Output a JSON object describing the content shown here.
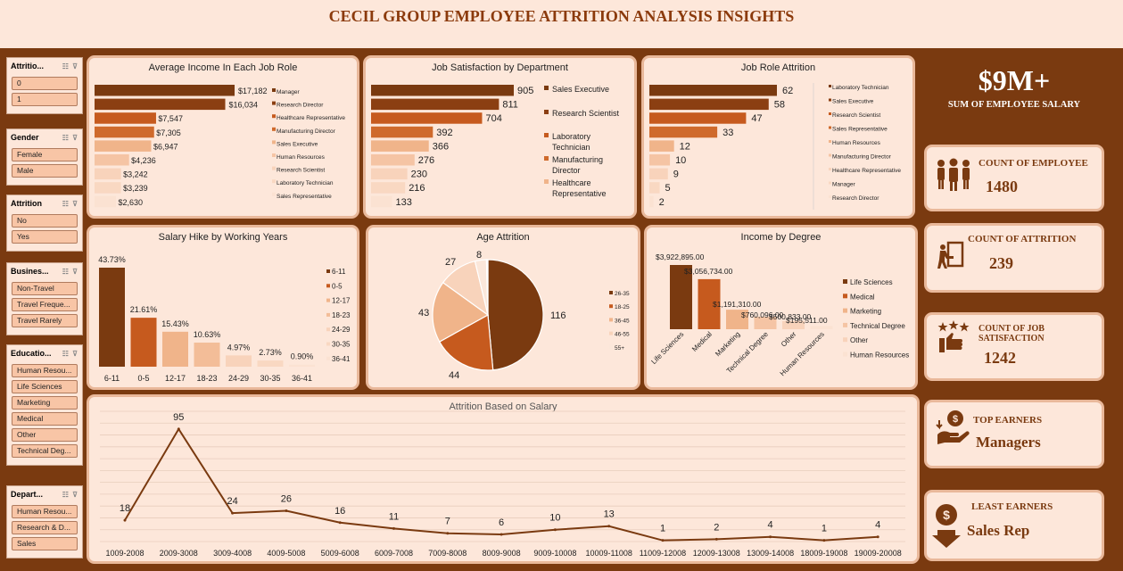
{
  "title": "CECIL GROUP EMPLOYEE ATTRITION ANALYSIS INSIGHTS",
  "slicers": [
    {
      "title": "Attritio...",
      "items": [
        "0",
        "1"
      ]
    },
    {
      "title": "Gender",
      "items": [
        "Female",
        "Male"
      ]
    },
    {
      "title": "Attrition",
      "items": [
        "No",
        "Yes"
      ]
    },
    {
      "title": "Busines...",
      "items": [
        "Non-Travel",
        "Travel Freque...",
        "Travel Rarely"
      ]
    },
    {
      "title": "Educatio...",
      "items": [
        "Human Resou...",
        "Life Sciences",
        "Marketing",
        "Medical",
        "Other",
        "Technical Deg..."
      ]
    },
    {
      "title": "Depart...",
      "items": [
        "Human Resou...",
        "Research & D...",
        "Sales"
      ]
    }
  ],
  "kpis": {
    "salary_value": "$9M+",
    "salary_label": "SUM OF EMPLOYEE SALARY",
    "employee_label": "COUNT OF EMPLOYEE",
    "employee_value": "1480",
    "attrition_label": "COUNT OF ATTRITION",
    "attrition_value": "239",
    "jobsat_label_1": "COUNT OF JOB",
    "jobsat_label_2": "SATISFACTION",
    "jobsat_value": "1242",
    "top_label": "TOP EARNERS",
    "top_value": "Managers",
    "least_label": "LEAST EARNERS",
    "least_value": "Sales Rep"
  },
  "chart_data": [
    {
      "id": "income-role",
      "type": "bar",
      "title": "Average Income In Each Job Role",
      "values": [
        17182,
        16034,
        7547,
        7305,
        6947,
        4236,
        3242,
        3239,
        2630
      ],
      "labels": [
        "$17,182",
        "$16,034",
        "$7,547",
        "$7,305",
        "$6,947",
        "$4,236",
        "$3,242",
        "$3,239",
        "$2,630"
      ],
      "legend": [
        "Manager",
        "Research Director",
        "Healthcare Representative",
        "Manufacturing Director",
        "Sales Executive",
        "Human Resources",
        "Research Scientist",
        "Laboratory Technician",
        "Sales Representative"
      ],
      "colors": [
        "#7a3a10",
        "#8b3f12",
        "#c65a1e",
        "#cf6a2c",
        "#f0b48a",
        "#f5c4a4",
        "#f8d3bb",
        "#f9d8c2",
        "#fbe2d2"
      ]
    },
    {
      "id": "job-sat",
      "type": "bar",
      "title": "Job Satisfaction by Department",
      "values": [
        905,
        811,
        704,
        392,
        366,
        276,
        230,
        216,
        133
      ],
      "legend": [
        "Sales Executive",
        "Research Scientist",
        "Laboratory Technician",
        "Manufacturing Director",
        "Healthcare Representative"
      ],
      "colors": [
        "#7a3a10",
        "#8b3f12",
        "#c65a1e",
        "#cf6a2c",
        "#f0b48a",
        "#f5c4a4",
        "#f8d3bb",
        "#f9d8c2",
        "#fbe2d2"
      ]
    },
    {
      "id": "role-attr",
      "type": "bar",
      "title": "Job Role Attrition",
      "values": [
        62,
        58,
        47,
        33,
        12,
        10,
        9,
        5,
        2
      ],
      "legend": [
        "Laboratory Technician",
        "Sales Executive",
        "Research Scientist",
        "Sales Representative",
        "Human Resources",
        "Manufacturing Director",
        "Healthcare Representative",
        "Manager",
        "Research Director"
      ],
      "colors": [
        "#7a3a10",
        "#8b3f12",
        "#c65a1e",
        "#cf6a2c",
        "#f0b48a",
        "#f5c4a4",
        "#f8d3bb",
        "#f9d8c2",
        "#fbe2d2"
      ]
    },
    {
      "id": "salary-hike",
      "type": "bar",
      "title": "Salary Hike by Working Years",
      "categories": [
        "6-11",
        "0-5",
        "12-17",
        "18-23",
        "24-29",
        "30-35",
        "36-41"
      ],
      "values": [
        43.73,
        21.61,
        15.43,
        10.63,
        4.97,
        2.73,
        0.9
      ],
      "labels": [
        "43.73%",
        "21.61%",
        "15.43%",
        "10.63%",
        "4.97%",
        "2.73%",
        "0.90%"
      ],
      "colors": [
        "#7a3a10",
        "#c65a1e",
        "#f0b48a",
        "#f3bd98",
        "#f8d3bb",
        "#f9d8c2",
        "#fbe2d2"
      ]
    },
    {
      "id": "age-attr",
      "type": "pie",
      "title": "Age Attrition",
      "values": [
        116,
        44,
        43,
        27,
        8,
        1
      ],
      "labels": [
        "116",
        "44",
        "43",
        "27",
        "8",
        ""
      ],
      "legend": [
        "26-35",
        "18-25",
        "36-45",
        "46-55",
        "55+"
      ],
      "colors": [
        "#7a3a10",
        "#c65a1e",
        "#f0b48a",
        "#f8d3bb",
        "#fbe7da",
        "#ffffff"
      ]
    },
    {
      "id": "income-degree",
      "type": "bar",
      "title": "Income by Degree",
      "categories": [
        "Life Sciences",
        "Medical",
        "Marketing",
        "Technical Degree",
        "Other",
        "Human Resources"
      ],
      "values": [
        3922895,
        3056734,
        1191310,
        760096,
        500833,
        195511
      ],
      "labels": [
        "$3,922,895.00",
        "$3,056,734.00",
        "$1,191,310.00",
        "$760,096.00",
        "$500,833.00",
        "$195,511.00"
      ],
      "legend": [
        "Life Sciences",
        "Medical",
        "Marketing",
        "Technical Degree",
        "Other",
        "Human Resources"
      ],
      "colors": [
        "#7a3a10",
        "#c65a1e",
        "#f0b48a",
        "#f5c4a4",
        "#f8d3bb",
        "#fbe2d2"
      ]
    },
    {
      "id": "attr-salary",
      "type": "line",
      "title": "Attrition Based on Salary",
      "categories": [
        "1009-2008",
        "2009-3008",
        "3009-4008",
        "4009-5008",
        "5009-6008",
        "6009-7008",
        "7009-8008",
        "8009-9008",
        "9009-10008",
        "10009-11008",
        "11009-12008",
        "12009-13008",
        "13009-14008",
        "18009-19008",
        "19009-20008"
      ],
      "values": [
        18,
        95,
        24,
        26,
        16,
        11,
        7,
        6,
        10,
        13,
        1,
        2,
        4,
        1,
        4
      ],
      "ylim": [
        0,
        110
      ]
    }
  ]
}
